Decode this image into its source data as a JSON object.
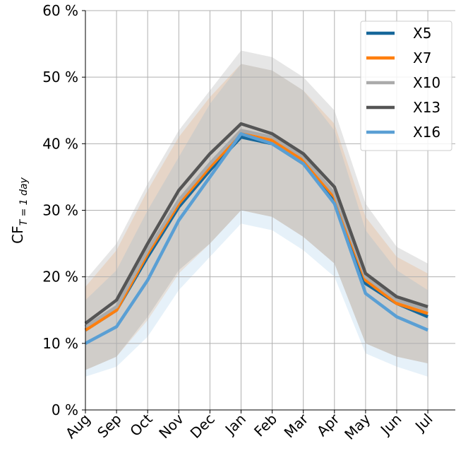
{
  "chart_data": {
    "type": "line",
    "y_label": "CF",
    "y_label_sub": "T = 1 day",
    "categories": [
      "Aug",
      "Sep",
      "Oct",
      "Nov",
      "Dec",
      "Jan",
      "Feb",
      "Mar",
      "Apr",
      "May",
      "Jun",
      "Jul"
    ],
    "ylim": [
      0,
      60
    ],
    "yticks": [
      {
        "value": 0,
        "label": "0 %"
      },
      {
        "value": 10,
        "label": "10 %"
      },
      {
        "value": 20,
        "label": "20 %"
      },
      {
        "value": 30,
        "label": "30 %"
      },
      {
        "value": 40,
        "label": "40 %"
      },
      {
        "value": 50,
        "label": "50 %"
      },
      {
        "value": 60,
        "label": "60 %"
      }
    ],
    "grid": true,
    "legend": "upper right",
    "series": [
      {
        "name": "X5",
        "color": "#16679a",
        "values": [
          12,
          15,
          23,
          30.5,
          36,
          41,
          40,
          37,
          31.5,
          19,
          16,
          14
        ]
      },
      {
        "name": "X7",
        "color": "#ff7f0e",
        "values": [
          12,
          15,
          23.5,
          31,
          36.5,
          41.5,
          40.5,
          37.5,
          32,
          19.5,
          16,
          14.5
        ],
        "lower": [
          6,
          8,
          13.5,
          20.5,
          25,
          30,
          29,
          26,
          22,
          10,
          8,
          7
        ],
        "upper": [
          18.5,
          24,
          33,
          41,
          47,
          52,
          51,
          48,
          43,
          29,
          23,
          20.5
        ]
      },
      {
        "name": "X10",
        "color": "#aaaaaa",
        "values": [
          12.5,
          15.5,
          24,
          31.5,
          37,
          42,
          41,
          38,
          32.5,
          20,
          16.5,
          15
        ]
      },
      {
        "name": "X13",
        "color": "#555555",
        "values": [
          13,
          16.5,
          25,
          33,
          38.5,
          43,
          41.5,
          38.5,
          33.5,
          20.5,
          17,
          15.5
        ],
        "lower": [
          6,
          8,
          14,
          21,
          25,
          30,
          29,
          26,
          22,
          10,
          8,
          7
        ],
        "upper": [
          19.5,
          25,
          34,
          42,
          48,
          54,
          53,
          50,
          45,
          31,
          24.5,
          22
        ]
      },
      {
        "name": "X16",
        "color": "#5a9fd4",
        "values": [
          10,
          12.5,
          19.5,
          28.5,
          35,
          41.5,
          40,
          37,
          31,
          17.5,
          14,
          12
        ],
        "lower": [
          5,
          6.5,
          11,
          18,
          23,
          28,
          27,
          24,
          20,
          8.5,
          6.5,
          5
        ],
        "upper": [
          16.5,
          21,
          30,
          38,
          46,
          52,
          51,
          48,
          42,
          27,
          21,
          18
        ]
      }
    ]
  }
}
